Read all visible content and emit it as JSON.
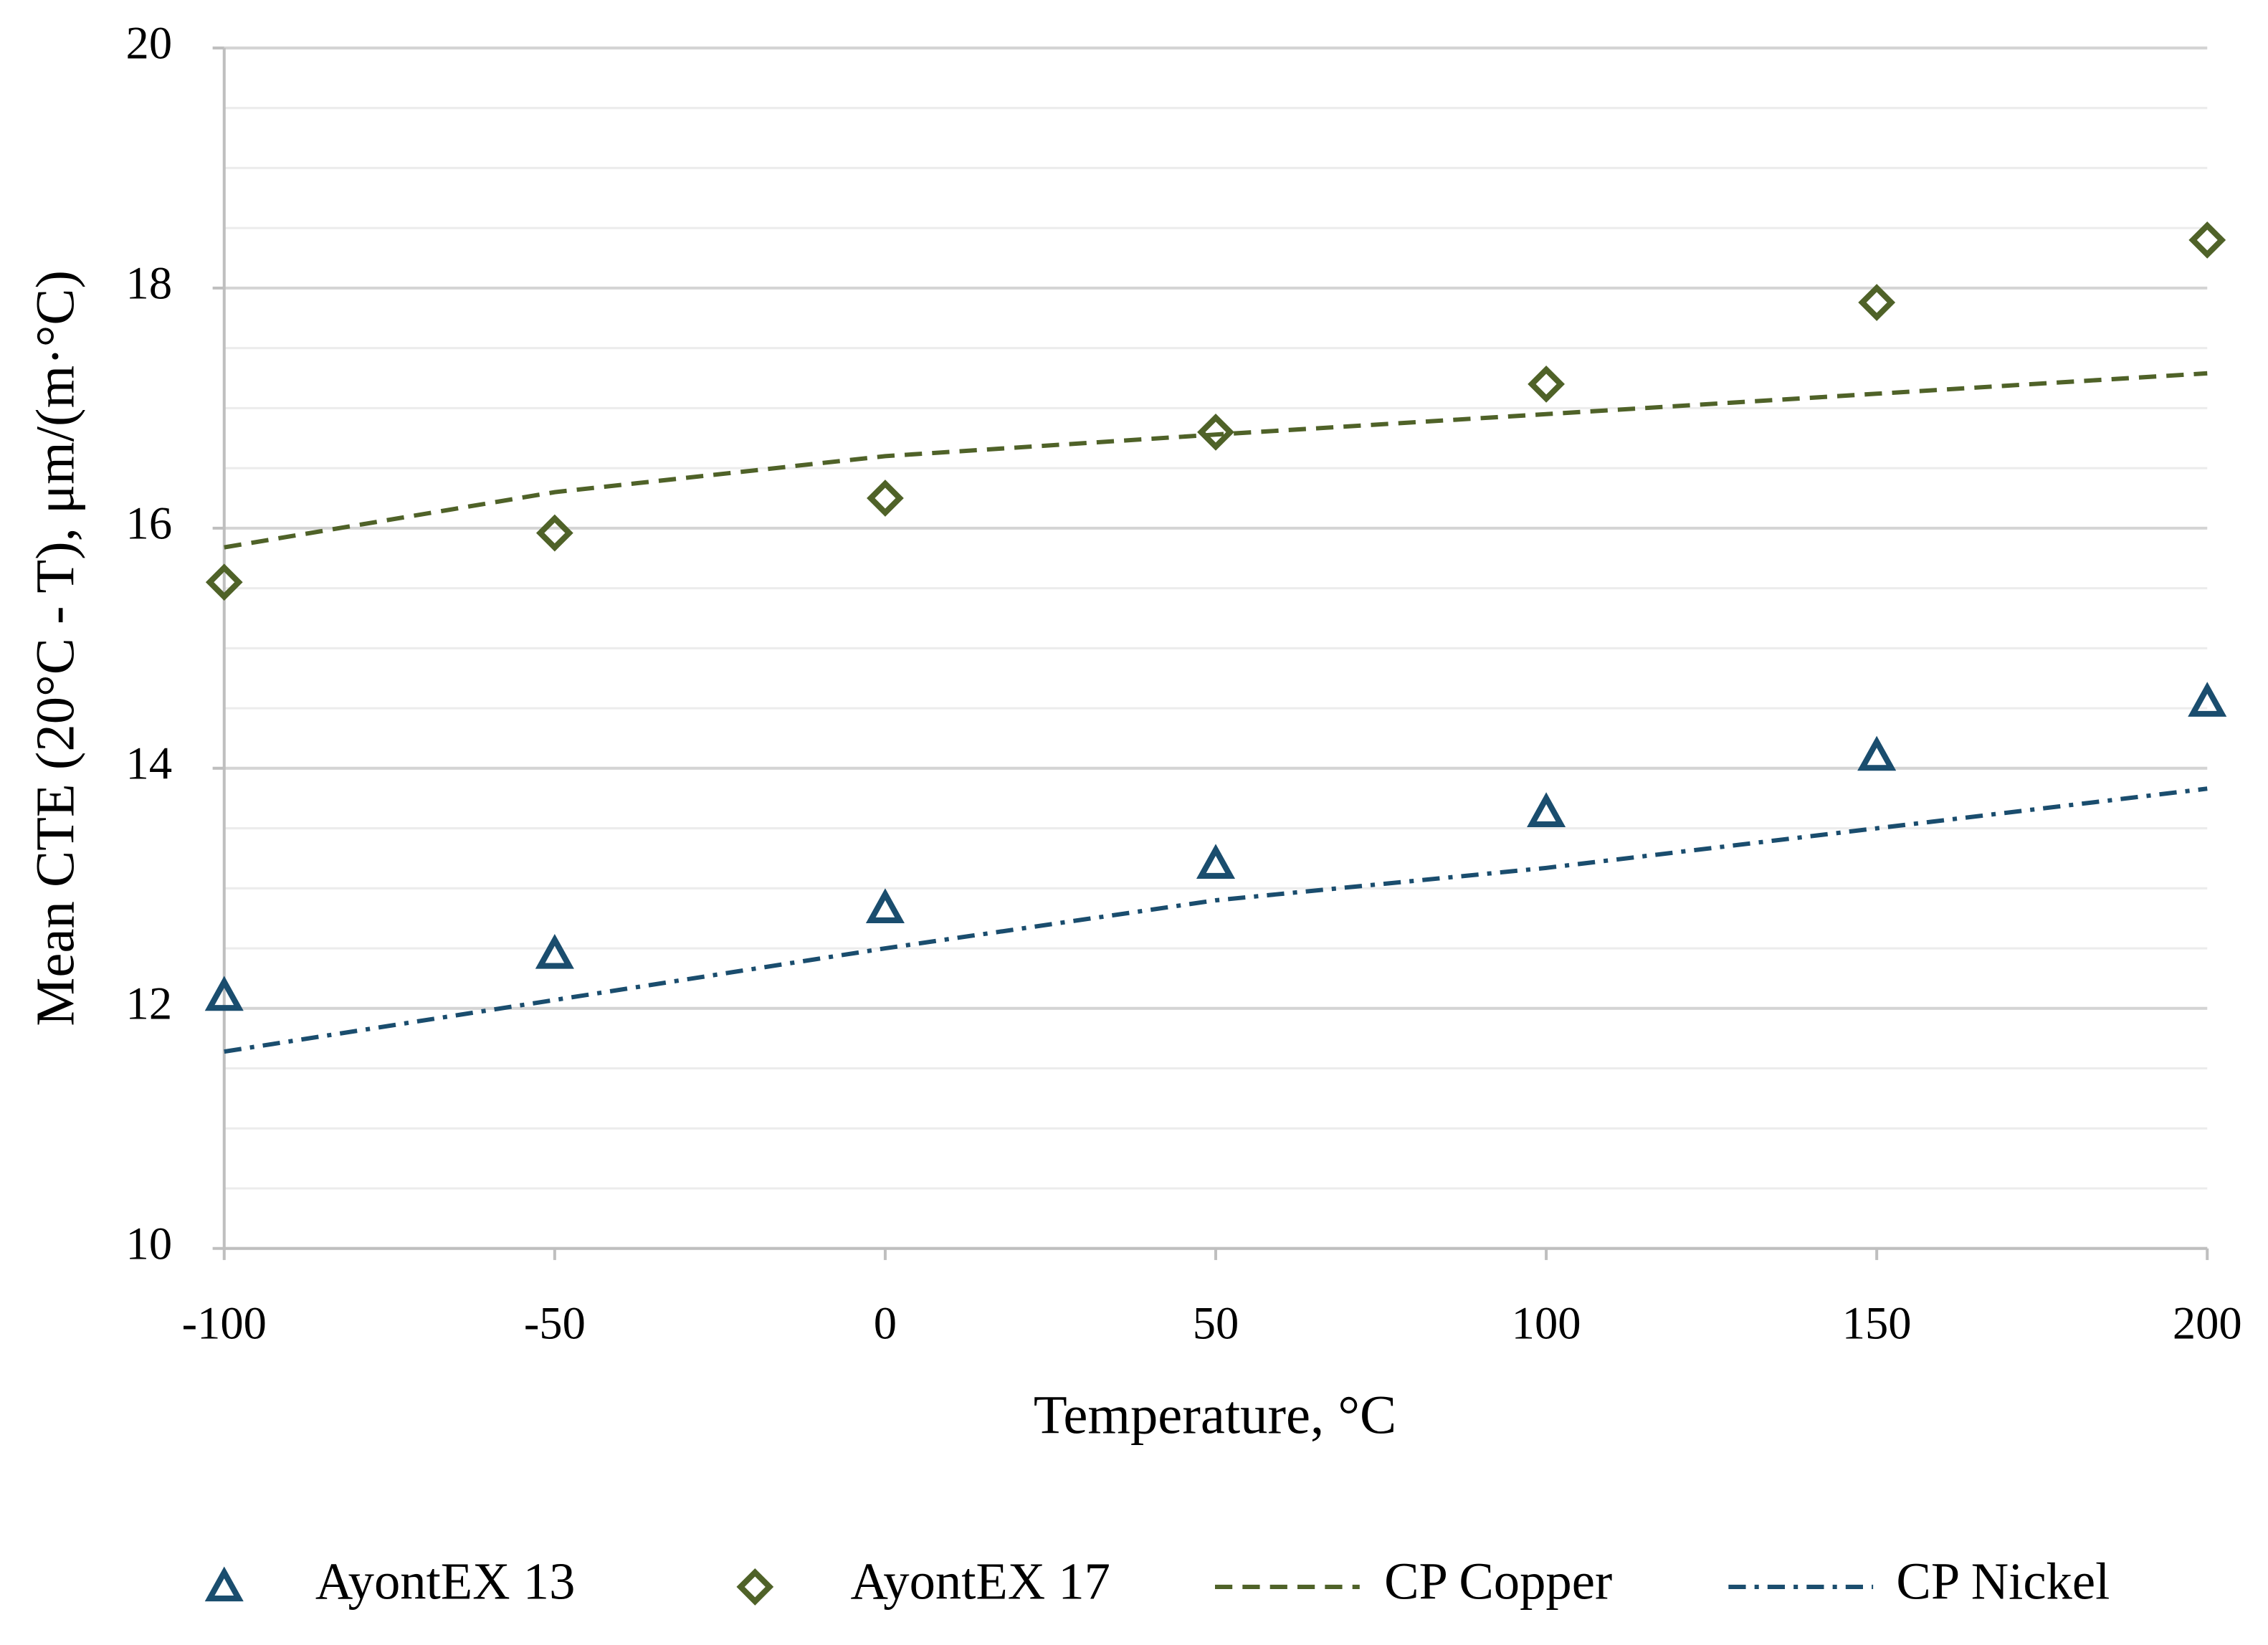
{
  "chart_data": {
    "type": "scatter",
    "xlabel": "Temperature, °C",
    "ylabel": "Mean CTE (20°C - T), μm/(m·°C)",
    "xlim": [
      -100,
      200
    ],
    "xticks": [
      -100,
      -50,
      0,
      50,
      100,
      150,
      200
    ],
    "ylim": [
      10,
      20
    ],
    "yticks": [
      10,
      12,
      14,
      16,
      18,
      20
    ],
    "y_minor_ticks": [
      10.5,
      11,
      11.5,
      12.5,
      13,
      13.5,
      14.5,
      15,
      15.5,
      16.5,
      17,
      17.5,
      18.5,
      19,
      19.5
    ],
    "grid": true,
    "legend": "bottom",
    "series": [
      {
        "name": "AyontEX 13",
        "color": "#1a4d6e",
        "marker": "triangle",
        "x": [
          -100,
          -50,
          0,
          50,
          100,
          150,
          200
        ],
        "values": [
          12.1,
          12.45,
          12.83,
          13.2,
          13.63,
          14.1,
          14.55
        ]
      },
      {
        "name": "AyontEX 17",
        "color": "#4f6228",
        "marker": "diamond",
        "x": [
          -100,
          -50,
          0,
          50,
          100,
          150,
          200
        ],
        "values": [
          15.55,
          15.96,
          16.25,
          16.8,
          17.2,
          17.88,
          18.4
        ]
      },
      {
        "name": "CP Copper",
        "color": "#4f6228",
        "line": "dash",
        "x": [
          -100,
          -50,
          0,
          50,
          100,
          150,
          200
        ],
        "values": [
          15.84,
          16.3,
          16.6,
          16.78,
          16.95,
          17.12,
          17.29
        ]
      },
      {
        "name": "CP Nickel",
        "color": "#1a4d6e",
        "line": "dashdot",
        "x": [
          -100,
          -50,
          0,
          50,
          100,
          150,
          200
        ],
        "values": [
          11.64,
          12.07,
          12.5,
          12.9,
          13.17,
          13.5,
          13.83
        ]
      }
    ]
  }
}
